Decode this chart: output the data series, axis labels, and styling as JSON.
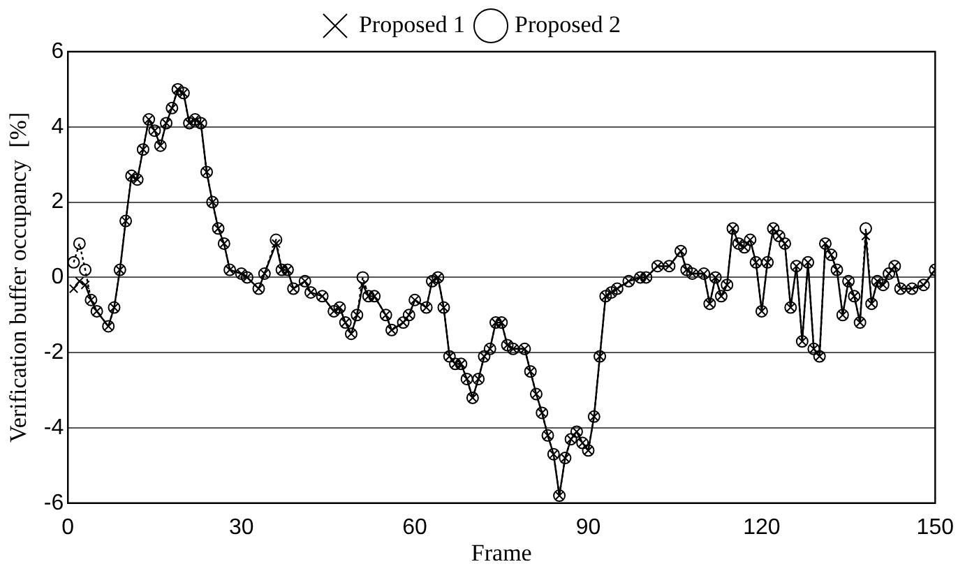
{
  "chart_data": {
    "type": "line",
    "xlabel": "Frame",
    "ylabel": "Verification buffer occupancy  [%]",
    "xlim": [
      0,
      150
    ],
    "xticks": [
      0,
      30,
      60,
      90,
      120,
      150
    ],
    "ylim": [
      -6,
      6
    ],
    "yticks": [
      -6,
      -4,
      -2,
      0,
      2,
      4,
      6
    ],
    "grid": "y",
    "legend": "top",
    "x": [
      1,
      2,
      3,
      4,
      5,
      7,
      8,
      9,
      10,
      11,
      12,
      13,
      14,
      15,
      16,
      17,
      18,
      19,
      20,
      21,
      22,
      23,
      24,
      25,
      26,
      27,
      28,
      30,
      31,
      33,
      34,
      36,
      37,
      38,
      39,
      41,
      42,
      44,
      46,
      47,
      48,
      49,
      50,
      51,
      52,
      53,
      55,
      56,
      58,
      59,
      60,
      62,
      63,
      64,
      65,
      66,
      67,
      68,
      69,
      70,
      71,
      72,
      73,
      74,
      75,
      76,
      77,
      79,
      80,
      81,
      82,
      83,
      84,
      85,
      86,
      87,
      88,
      89,
      90,
      91,
      92,
      93,
      94,
      95,
      97,
      99,
      100,
      102,
      104,
      106,
      107,
      108,
      110,
      111,
      112,
      113,
      114,
      115,
      116,
      117,
      118,
      119,
      120,
      121,
      122,
      123,
      124,
      125,
      126,
      127,
      128,
      129,
      130,
      131,
      132,
      133,
      134,
      135,
      136,
      137,
      138,
      139,
      140,
      141,
      142,
      143,
      144,
      146,
      148,
      150
    ],
    "series": [
      {
        "name": "Proposed 1",
        "color": "#000000",
        "marker": "cross",
        "line_style": "solid",
        "values": [
          -0.3,
          -0.1,
          -0.2,
          -0.6,
          -0.9,
          -1.3,
          -0.8,
          0.2,
          1.5,
          2.7,
          2.6,
          3.4,
          4.2,
          3.9,
          3.5,
          4.1,
          4.5,
          5.0,
          4.9,
          4.1,
          4.2,
          4.1,
          2.8,
          2.0,
          1.3,
          0.9,
          0.2,
          0.1,
          0.0,
          -0.3,
          0.1,
          0.9,
          0.2,
          0.2,
          -0.3,
          -0.1,
          -0.4,
          -0.5,
          -0.9,
          -0.8,
          -1.2,
          -1.5,
          -1.0,
          -0.2,
          -0.5,
          -0.5,
          -1.0,
          -1.4,
          -1.2,
          -1.0,
          -0.6,
          -0.8,
          -0.1,
          0.0,
          -0.8,
          -2.1,
          -2.3,
          -2.3,
          -2.7,
          -3.2,
          -2.7,
          -2.1,
          -1.9,
          -1.2,
          -1.2,
          -1.8,
          -1.9,
          -1.9,
          -2.5,
          -3.1,
          -3.6,
          -4.2,
          -4.7,
          -5.8,
          -4.8,
          -4.3,
          -4.1,
          -4.4,
          -4.6,
          -3.7,
          -2.1,
          -0.5,
          -0.4,
          -0.3,
          -0.1,
          0.0,
          0.0,
          0.3,
          0.3,
          0.7,
          0.2,
          0.1,
          0.1,
          -0.7,
          0.0,
          -0.5,
          -0.2,
          1.3,
          0.9,
          0.8,
          1.0,
          0.4,
          -0.9,
          0.4,
          1.3,
          1.1,
          0.9,
          -0.8,
          0.3,
          -1.7,
          0.4,
          -1.9,
          -2.1,
          0.9,
          0.6,
          0.2,
          -1.0,
          -0.1,
          -0.5,
          -1.2,
          1.1,
          -0.7,
          -0.1,
          -0.2,
          0.1,
          0.3,
          -0.3,
          -0.3,
          -0.2,
          0.2
        ]
      },
      {
        "name": "Proposed 2",
        "color": "#000000",
        "marker": "circle",
        "line_style": "dotted",
        "values": [
          0.4,
          0.9,
          0.2,
          -0.6,
          -0.9,
          -1.3,
          -0.8,
          0.2,
          1.5,
          2.7,
          2.6,
          3.4,
          4.2,
          3.9,
          3.5,
          4.1,
          4.5,
          5.0,
          4.9,
          4.1,
          4.2,
          4.1,
          2.8,
          2.0,
          1.3,
          0.9,
          0.2,
          0.1,
          0.0,
          -0.3,
          0.1,
          1.0,
          0.2,
          0.2,
          -0.3,
          -0.1,
          -0.4,
          -0.5,
          -0.9,
          -0.8,
          -1.2,
          -1.5,
          -1.0,
          0.0,
          -0.5,
          -0.5,
          -1.0,
          -1.4,
          -1.2,
          -1.0,
          -0.6,
          -0.8,
          -0.1,
          0.0,
          -0.8,
          -2.1,
          -2.3,
          -2.3,
          -2.7,
          -3.2,
          -2.7,
          -2.1,
          -1.9,
          -1.2,
          -1.2,
          -1.8,
          -1.9,
          -1.9,
          -2.5,
          -3.1,
          -3.6,
          -4.2,
          -4.7,
          -5.8,
          -4.8,
          -4.3,
          -4.1,
          -4.4,
          -4.6,
          -3.7,
          -2.1,
          -0.5,
          -0.4,
          -0.3,
          -0.1,
          0.0,
          0.0,
          0.3,
          0.3,
          0.7,
          0.2,
          0.1,
          0.1,
          -0.7,
          0.0,
          -0.5,
          -0.2,
          1.3,
          0.9,
          0.8,
          1.0,
          0.4,
          -0.9,
          0.4,
          1.3,
          1.1,
          0.9,
          -0.8,
          0.3,
          -1.7,
          0.4,
          -1.9,
          -2.1,
          0.9,
          0.6,
          0.2,
          -1.0,
          -0.1,
          -0.5,
          -1.2,
          1.3,
          -0.7,
          -0.1,
          -0.2,
          0.1,
          0.3,
          -0.3,
          -0.3,
          -0.2,
          0.2
        ]
      }
    ]
  }
}
